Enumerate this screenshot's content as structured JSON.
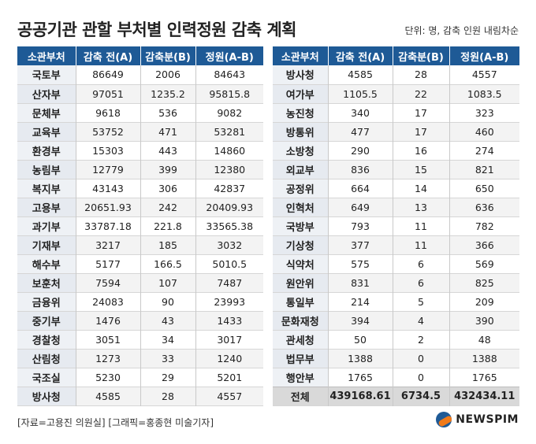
{
  "header": {
    "title": "공공기관 관할 부처별 인력정원 감축 계획",
    "unit": "단위: 명, 감축 인원 내림차순"
  },
  "footer": {
    "source": "[자료=고용진 의원실] [그래픽=홍종현 미술기자]",
    "logo": "NEWSPIM"
  },
  "chart_data": {
    "type": "table",
    "columns": [
      "소관부처",
      "감축 전(A)",
      "감축분(B)",
      "정원(A-B)"
    ],
    "left_rows": [
      [
        "국토부",
        "86649",
        "2006",
        "84643"
      ],
      [
        "산자부",
        "97051",
        "1235.2",
        "95815.8"
      ],
      [
        "문체부",
        "9618",
        "536",
        "9082"
      ],
      [
        "교육부",
        "53752",
        "471",
        "53281"
      ],
      [
        "환경부",
        "15303",
        "443",
        "14860"
      ],
      [
        "농림부",
        "12779",
        "399",
        "12380"
      ],
      [
        "복지부",
        "43143",
        "306",
        "42837"
      ],
      [
        "고용부",
        "20651.93",
        "242",
        "20409.93"
      ],
      [
        "과기부",
        "33787.18",
        "221.8",
        "33565.38"
      ],
      [
        "기재부",
        "3217",
        "185",
        "3032"
      ],
      [
        "해수부",
        "5177",
        "166.5",
        "5010.5"
      ],
      [
        "보훈처",
        "7594",
        "107",
        "7487"
      ],
      [
        "금융위",
        "24083",
        "90",
        "23993"
      ],
      [
        "중기부",
        "1476",
        "43",
        "1433"
      ],
      [
        "경찰청",
        "3051",
        "34",
        "3017"
      ],
      [
        "산림청",
        "1273",
        "33",
        "1240"
      ],
      [
        "국조실",
        "5230",
        "29",
        "5201"
      ],
      [
        "방사청",
        "4585",
        "28",
        "4557"
      ]
    ],
    "right_rows": [
      [
        "방사청",
        "4585",
        "28",
        "4557"
      ],
      [
        "여가부",
        "1105.5",
        "22",
        "1083.5"
      ],
      [
        "농진청",
        "340",
        "17",
        "323"
      ],
      [
        "방통위",
        "477",
        "17",
        "460"
      ],
      [
        "소방청",
        "290",
        "16",
        "274"
      ],
      [
        "외교부",
        "836",
        "15",
        "821"
      ],
      [
        "공정위",
        "664",
        "14",
        "650"
      ],
      [
        "인혁처",
        "649",
        "13",
        "636"
      ],
      [
        "국방부",
        "793",
        "11",
        "782"
      ],
      [
        "기상청",
        "377",
        "11",
        "366"
      ],
      [
        "식약처",
        "575",
        "6",
        "569"
      ],
      [
        "원안위",
        "831",
        "6",
        "825"
      ],
      [
        "통일부",
        "214",
        "5",
        "209"
      ],
      [
        "문화재청",
        "394",
        "4",
        "390"
      ],
      [
        "관세청",
        "50",
        "2",
        "48"
      ],
      [
        "법무부",
        "1388",
        "0",
        "1388"
      ],
      [
        "행안부",
        "1765",
        "0",
        "1765"
      ]
    ],
    "total": [
      "전체",
      "439168.61",
      "6734.5",
      "432434.11"
    ]
  }
}
